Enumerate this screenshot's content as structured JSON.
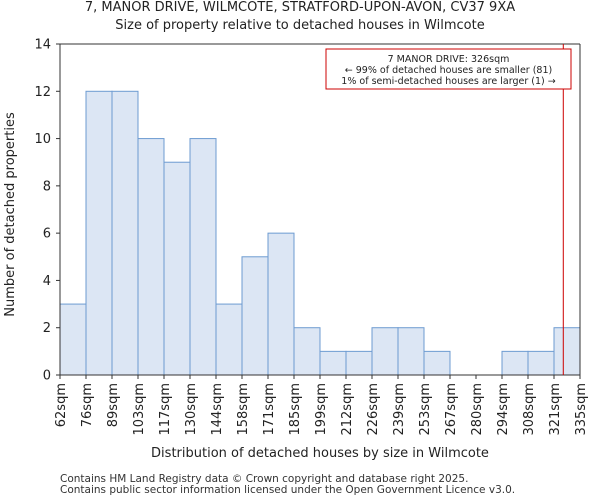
{
  "header": {
    "title_line1": "7, MANOR DRIVE, WILMCOTE, STRATFORD-UPON-AVON, CV37 9XA",
    "title_line2": "Size of property relative to detached houses in Wilmcote"
  },
  "chart_data": {
    "type": "bar",
    "xlabel": "Distribution of detached houses by size in Wilmcote",
    "ylabel": "Number of detached properties",
    "ylim": [
      0,
      14
    ],
    "yticks": [
      0,
      2,
      4,
      6,
      8,
      10,
      12,
      14
    ],
    "bin_edges": [
      "62sqm",
      "76sqm",
      "89sqm",
      "103sqm",
      "117sqm",
      "130sqm",
      "144sqm",
      "158sqm",
      "171sqm",
      "185sqm",
      "199sqm",
      "212sqm",
      "226sqm",
      "239sqm",
      "253sqm",
      "267sqm",
      "280sqm",
      "294sqm",
      "308sqm",
      "321sqm",
      "335sqm"
    ],
    "values": [
      3,
      12,
      12,
      10,
      9,
      10,
      3,
      5,
      6,
      2,
      1,
      1,
      2,
      2,
      1,
      0,
      0,
      1,
      1,
      2
    ],
    "bar_color": "#dce6f4",
    "bar_edge_color": "#6d9bd1",
    "marker": {
      "value_sqm": 326,
      "color": "#cc0000"
    },
    "annotation": {
      "line1": "7 MANOR DRIVE: 326sqm",
      "line2": "← 99% of detached houses are smaller (81)",
      "line3": "1% of semi-detached houses are larger (1) →",
      "border_color": "#cc0000"
    },
    "grid": false
  },
  "footer": {
    "line1": "Contains HM Land Registry data © Crown copyright and database right 2025.",
    "line2": "Contains public sector information licensed under the Open Government Licence v3.0."
  }
}
